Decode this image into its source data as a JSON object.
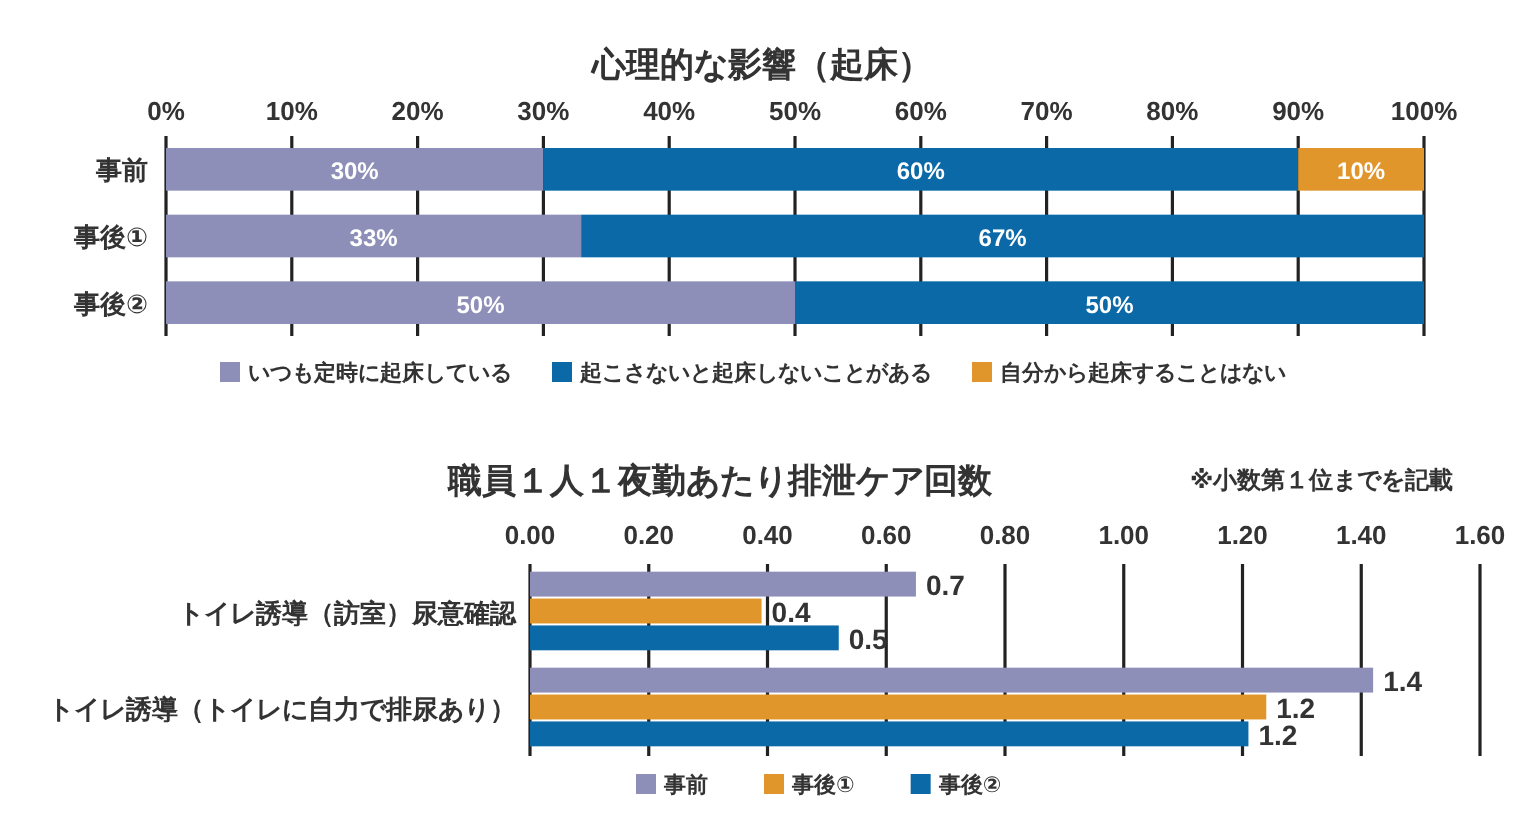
{
  "chart_data": [
    {
      "type": "bar",
      "orientation": "horizontal",
      "stacked": true,
      "title": "心理的な影響（起床）",
      "categories": [
        "事前",
        "事後①",
        "事後②"
      ],
      "series": [
        {
          "name": "いつも定時に起床している",
          "color": "#8e8fb8",
          "values": [
            30,
            33,
            50
          ],
          "value_labels": [
            "30%",
            "33%",
            "50%"
          ]
        },
        {
          "name": "起こさないと起床しないことがある",
          "color": "#0b69a8",
          "values": [
            60,
            67,
            50
          ],
          "value_labels": [
            "60%",
            "67%",
            "50%"
          ]
        },
        {
          "name": "自分から起床することはない",
          "color": "#e0962a",
          "values": [
            10,
            0,
            0
          ],
          "value_labels": [
            "10%",
            null,
            null
          ]
        }
      ],
      "xlim": [
        0,
        100
      ],
      "xticks": [
        {
          "value": 0,
          "label": "0%"
        },
        {
          "value": 10,
          "label": "10%"
        },
        {
          "value": 20,
          "label": "20%"
        },
        {
          "value": 30,
          "label": "30%"
        },
        {
          "value": 40,
          "label": "40%"
        },
        {
          "value": 50,
          "label": "50%"
        },
        {
          "value": 60,
          "label": "60%"
        },
        {
          "value": 70,
          "label": "70%"
        },
        {
          "value": 80,
          "label": "80%"
        },
        {
          "value": 90,
          "label": "90%"
        },
        {
          "value": 100,
          "label": "100%"
        }
      ],
      "grid": "x",
      "legend": "bottom"
    },
    {
      "type": "bar",
      "orientation": "horizontal",
      "title": "職員１人１夜勤あたり排泄ケア回数",
      "annotations": [
        "※小数第１位までを記載"
      ],
      "categories": [
        "トイレ誘導（訪室）尿意確認",
        "トイレ誘導（トイレに自力で排尿あり）"
      ],
      "series": [
        {
          "name": "事前",
          "color": "#8e8fb8",
          "values": [
            0.65,
            1.42
          ],
          "value_labels": [
            "0.7",
            "1.4"
          ]
        },
        {
          "name": "事後①",
          "color": "#e0962a",
          "values": [
            0.39,
            1.24
          ],
          "value_labels": [
            "0.4",
            "1.2"
          ]
        },
        {
          "name": "事後②",
          "color": "#0b69a8",
          "values": [
            0.52,
            1.21
          ],
          "value_labels": [
            "0.5",
            "1.2"
          ]
        }
      ],
      "xlim": [
        0,
        1.6
      ],
      "xticks": [
        {
          "value": 0,
          "label": "0.00"
        },
        {
          "value": 0.2,
          "label": "0.20"
        },
        {
          "value": 0.4,
          "label": "0.40"
        },
        {
          "value": 0.6,
          "label": "0.60"
        },
        {
          "value": 0.8,
          "label": "0.80"
        },
        {
          "value": 1,
          "label": "1.00"
        },
        {
          "value": 1.2,
          "label": "1.20"
        },
        {
          "value": 1.4,
          "label": "1.40"
        },
        {
          "value": 1.6,
          "label": "1.60"
        }
      ],
      "grid": "x",
      "legend": "bottom"
    }
  ]
}
